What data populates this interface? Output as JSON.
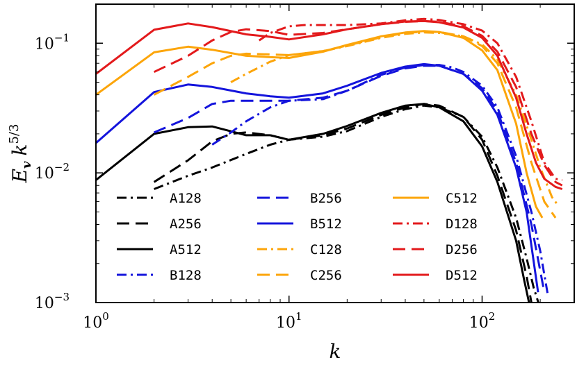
{
  "chart_data": {
    "type": "line",
    "title": "",
    "xlabel": "k",
    "ylabel": "E_v k^{5/3}",
    "xscale": "log",
    "yscale": "log",
    "xlim": [
      1,
      300
    ],
    "ylim": [
      0.001,
      0.2
    ],
    "x_ticks": [
      {
        "value": 1,
        "base": "10",
        "exp": "0"
      },
      {
        "value": 10,
        "base": "10",
        "exp": "1"
      },
      {
        "value": 100,
        "base": "10",
        "exp": "2"
      }
    ],
    "y_ticks": [
      {
        "value": 0.001,
        "base": "10",
        "exp": "−3"
      },
      {
        "value": 0.01,
        "base": "10",
        "exp": "−2"
      },
      {
        "value": 0.1,
        "base": "10",
        "exp": "−1"
      }
    ],
    "legend_position": "lower-center",
    "series": [
      {
        "name": "A128",
        "color": "#000000",
        "style": "dashdot",
        "x": [
          2,
          3,
          4,
          6,
          8,
          10,
          15,
          20,
          30,
          40,
          50,
          60,
          80,
          100,
          120,
          150,
          170,
          185,
          200
        ],
        "y": [
          0.0075,
          0.0095,
          0.011,
          0.014,
          0.0165,
          0.018,
          0.019,
          0.021,
          0.027,
          0.031,
          0.033,
          0.032,
          0.027,
          0.019,
          0.011,
          0.0045,
          0.0022,
          0.0013,
          0.0009
        ]
      },
      {
        "name": "A256",
        "color": "#000000",
        "style": "dashed",
        "x": [
          2,
          3,
          4,
          5,
          6,
          8,
          10,
          15,
          20,
          30,
          40,
          50,
          60,
          80,
          100,
          120,
          150,
          170,
          180
        ],
        "y": [
          0.0085,
          0.0125,
          0.0175,
          0.02,
          0.0205,
          0.0195,
          0.018,
          0.0195,
          0.022,
          0.028,
          0.032,
          0.034,
          0.033,
          0.027,
          0.018,
          0.0095,
          0.0036,
          0.0016,
          0.001
        ]
      },
      {
        "name": "A512",
        "color": "#000000",
        "style": "solid",
        "x": [
          1,
          2,
          3,
          4,
          6,
          8,
          10,
          15,
          20,
          30,
          40,
          50,
          60,
          80,
          100,
          120,
          150,
          165,
          175
        ],
        "y": [
          0.0088,
          0.02,
          0.0225,
          0.0228,
          0.0195,
          0.0195,
          0.018,
          0.02,
          0.023,
          0.029,
          0.033,
          0.034,
          0.032,
          0.025,
          0.016,
          0.0085,
          0.003,
          0.0015,
          0.001
        ]
      },
      {
        "name": "B128",
        "color": "#1414dc",
        "style": "dashdot",
        "x": [
          4,
          5,
          6,
          8,
          10,
          15,
          20,
          30,
          40,
          50,
          60,
          70,
          80,
          100,
          120,
          150,
          180,
          200,
          220
        ],
        "y": [
          0.0165,
          0.0205,
          0.025,
          0.032,
          0.036,
          0.037,
          0.043,
          0.057,
          0.065,
          0.068,
          0.068,
          0.065,
          0.06,
          0.047,
          0.032,
          0.0135,
          0.005,
          0.0025,
          0.0011
        ]
      },
      {
        "name": "B256",
        "color": "#1414dc",
        "style": "dashed",
        "x": [
          2,
          3,
          4,
          5,
          6,
          8,
          10,
          15,
          20,
          30,
          40,
          50,
          60,
          80,
          100,
          120,
          150,
          180,
          210
        ],
        "y": [
          0.0205,
          0.0265,
          0.034,
          0.036,
          0.036,
          0.036,
          0.036,
          0.038,
          0.043,
          0.056,
          0.064,
          0.067,
          0.067,
          0.058,
          0.045,
          0.03,
          0.012,
          0.004,
          0.0012
        ]
      },
      {
        "name": "B512",
        "color": "#1414dc",
        "style": "solid",
        "x": [
          1,
          2,
          3,
          4,
          6,
          8,
          10,
          15,
          20,
          30,
          40,
          50,
          60,
          80,
          100,
          120,
          150,
          170,
          195
        ],
        "y": [
          0.017,
          0.042,
          0.048,
          0.046,
          0.041,
          0.039,
          0.038,
          0.041,
          0.047,
          0.059,
          0.066,
          0.069,
          0.067,
          0.058,
          0.043,
          0.028,
          0.011,
          0.005,
          0.0012
        ]
      },
      {
        "name": "C128",
        "color": "#fca50a",
        "style": "dashdot",
        "x": [
          5,
          6,
          8,
          10,
          15,
          20,
          30,
          40,
          50,
          60,
          80,
          100,
          120,
          150,
          180,
          200,
          230,
          250
        ],
        "y": [
          0.05,
          0.058,
          0.072,
          0.081,
          0.087,
          0.095,
          0.11,
          0.118,
          0.121,
          0.12,
          0.113,
          0.098,
          0.075,
          0.04,
          0.018,
          0.011,
          0.0065,
          0.0055
        ]
      },
      {
        "name": "C256",
        "color": "#fca50a",
        "style": "dashed",
        "x": [
          2,
          3,
          4,
          5,
          6,
          8,
          10,
          15,
          20,
          30,
          40,
          50,
          60,
          80,
          100,
          120,
          150,
          180,
          210,
          240
        ],
        "y": [
          0.04,
          0.055,
          0.07,
          0.08,
          0.083,
          0.082,
          0.081,
          0.087,
          0.096,
          0.111,
          0.12,
          0.123,
          0.122,
          0.113,
          0.095,
          0.07,
          0.032,
          0.012,
          0.006,
          0.0045
        ]
      },
      {
        "name": "C512",
        "color": "#fca50a",
        "style": "solid",
        "x": [
          1,
          2,
          3,
          4,
          6,
          8,
          10,
          15,
          20,
          30,
          40,
          50,
          60,
          80,
          100,
          120,
          150,
          170,
          190,
          205
        ],
        "y": [
          0.04,
          0.085,
          0.094,
          0.089,
          0.08,
          0.078,
          0.077,
          0.086,
          0.097,
          0.113,
          0.121,
          0.124,
          0.122,
          0.11,
          0.088,
          0.062,
          0.024,
          0.01,
          0.0055,
          0.0045
        ]
      },
      {
        "name": "D128",
        "color": "#e31a1c",
        "style": "dashdot",
        "x": [
          7,
          8,
          10,
          12,
          15,
          20,
          30,
          40,
          50,
          60,
          80,
          100,
          120,
          150,
          180,
          210,
          240,
          260
        ],
        "y": [
          0.105,
          0.12,
          0.135,
          0.138,
          0.138,
          0.138,
          0.142,
          0.15,
          0.154,
          0.151,
          0.14,
          0.125,
          0.1,
          0.055,
          0.025,
          0.012,
          0.009,
          0.0088
        ]
      },
      {
        "name": "D256",
        "color": "#e31a1c",
        "style": "dashed",
        "x": [
          2,
          3,
          4,
          5,
          6,
          8,
          10,
          15,
          20,
          30,
          40,
          50,
          60,
          80,
          100,
          120,
          150,
          180,
          210,
          240,
          260
        ],
        "y": [
          0.06,
          0.08,
          0.105,
          0.122,
          0.128,
          0.124,
          0.116,
          0.12,
          0.128,
          0.14,
          0.146,
          0.148,
          0.146,
          0.135,
          0.114,
          0.086,
          0.046,
          0.02,
          0.0115,
          0.0085,
          0.008
        ]
      },
      {
        "name": "D512",
        "color": "#e31a1c",
        "style": "solid",
        "x": [
          1,
          2,
          3,
          4,
          6,
          8,
          10,
          15,
          20,
          30,
          40,
          50,
          60,
          80,
          100,
          120,
          150,
          170,
          190,
          210,
          240,
          260
        ],
        "y": [
          0.058,
          0.127,
          0.142,
          0.133,
          0.117,
          0.112,
          0.107,
          0.117,
          0.128,
          0.14,
          0.147,
          0.148,
          0.145,
          0.132,
          0.11,
          0.08,
          0.038,
          0.02,
          0.012,
          0.009,
          0.0078,
          0.0075
        ]
      }
    ]
  }
}
